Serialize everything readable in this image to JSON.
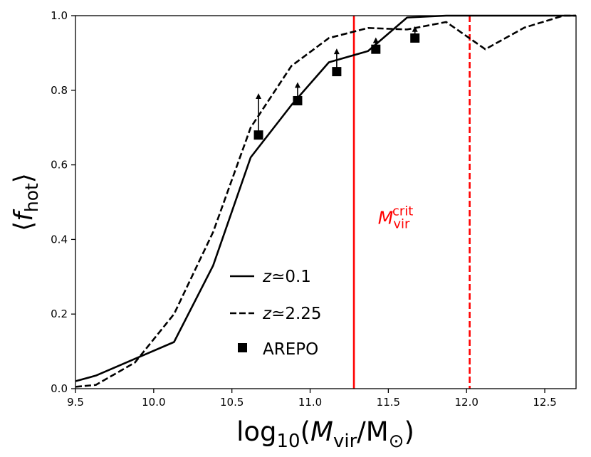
{
  "chart_data": {
    "type": "line",
    "title": "",
    "xlabel": {
      "prefix": "log",
      "prefix_sub": "10",
      "open": "(",
      "var": "M",
      "var_sub": "vir",
      "slash": "/M",
      "sun": "⊙",
      "close": ")"
    },
    "ylabel": {
      "open": "⟨",
      "var": "f",
      "var_sub": "hot",
      "close": "⟩"
    },
    "xlim": [
      9.5,
      12.7
    ],
    "ylim": [
      0.0,
      1.0
    ],
    "xticks": [
      9.5,
      10.0,
      10.5,
      11.0,
      11.5,
      12.0,
      12.5
    ],
    "xtick_labels": [
      "9.5",
      "10.0",
      "10.5",
      "11.0",
      "11.5",
      "12.0",
      "12.5"
    ],
    "yticks": [
      0.0,
      0.2,
      0.4,
      0.6,
      0.8,
      1.0
    ],
    "ytick_labels": [
      "0.0",
      "0.2",
      "0.4",
      "0.6",
      "0.8",
      "1.0"
    ],
    "grid": false,
    "legend_position": "lower-center",
    "series": [
      {
        "name": "z≃0.1",
        "legend_prefix": "z",
        "legend_value": "≃0.1",
        "style": "solid",
        "color": "#000000",
        "x": [
          9.5,
          9.63,
          9.88,
          10.13,
          10.38,
          10.62,
          10.88,
          11.12,
          11.37,
          11.62,
          11.87,
          12.12,
          12.37,
          12.62,
          12.7
        ],
        "y": [
          0.02,
          0.035,
          0.08,
          0.125,
          0.33,
          0.62,
          0.76,
          0.875,
          0.905,
          0.995,
          1.0,
          1.0,
          1.0,
          1.0,
          1.0
        ]
      },
      {
        "name": "z≃2.25",
        "legend_prefix": "z",
        "legend_value": "≃2.25",
        "style": "dashed",
        "color": "#000000",
        "x": [
          9.5,
          9.63,
          9.88,
          10.13,
          10.38,
          10.62,
          10.88,
          11.12,
          11.37,
          11.62,
          11.87,
          12.12,
          12.37,
          12.62,
          12.7
        ],
        "y": [
          0.005,
          0.01,
          0.07,
          0.2,
          0.42,
          0.7,
          0.865,
          0.94,
          0.967,
          0.963,
          0.983,
          0.91,
          0.968,
          1.0,
          1.0
        ]
      },
      {
        "name": "AREPO",
        "style": "markers",
        "marker": "square",
        "color": "#000000",
        "lower_limit_arrows": true,
        "x": [
          10.67,
          10.92,
          11.17,
          11.42,
          11.67
        ],
        "y": [
          0.68,
          0.772,
          0.85,
          0.91,
          0.94
        ],
        "arrow_to": [
          0.79,
          0.82,
          0.91,
          0.94,
          0.97
        ]
      }
    ],
    "vlines": [
      {
        "x": 11.28,
        "style": "solid",
        "color": "#ff0000"
      },
      {
        "x": 12.02,
        "style": "dashed",
        "color": "#ff0000"
      }
    ],
    "annotation": {
      "var": "M",
      "sub": "vir",
      "sup": "crit",
      "color": "#ff0000",
      "x": 11.57,
      "y": 0.48
    }
  }
}
